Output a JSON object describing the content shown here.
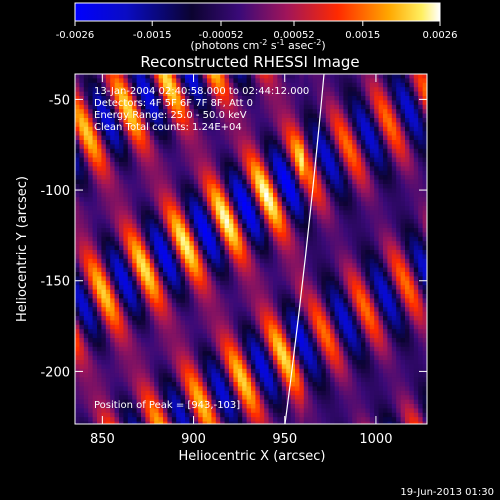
{
  "colorbar": {
    "ticks": [
      "-0.0026",
      "-0.0015",
      "-0.00052",
      "0.00052",
      "0.0015",
      "0.0026"
    ],
    "unit_main": "(photons cm",
    "unit_exp1": "-2",
    "unit_mid": " s",
    "unit_exp2": "-1",
    "unit_mid2": " asec",
    "unit_exp3": "-2",
    "unit_end": ")"
  },
  "header": {
    "title": "Reconstructed RHESSI Image",
    "line1": "13-Jan-2004 02:40:58.000 to 02:44:12.000",
    "line2": "Detectors: 4F 5F 6F 7F 8F, Att 0",
    "line3": "Energy Range: 25.0 - 50.0 keV",
    "line4": "Clean     Total counts: 1.24E+04"
  },
  "peak_label": "Position of Peak = [943,-103]",
  "footer": {
    "timestamp": "19-Jun-2013 01:30"
  },
  "chart_data": {
    "type": "heatmap",
    "title": "Reconstructed RHESSI Image",
    "xlabel": "Heliocentric X (arcsec)",
    "ylabel": "Heliocentric Y (arcsec)",
    "xlim": [
      835,
      1028
    ],
    "ylim": [
      -229,
      -36
    ],
    "xticks": [
      850,
      900,
      950,
      1000
    ],
    "yticks": [
      -50,
      -100,
      -150,
      -200
    ],
    "xtick_labels": [
      "850",
      "900",
      "950",
      "1000"
    ],
    "ytick_labels": [
      "-50",
      "-100",
      "-150",
      "-200"
    ],
    "value_range": [
      -0.0026,
      0.0026
    ],
    "colormap": "blue-black-purple-red-orange-yellow-white",
    "peak": [
      943,
      -103
    ]
  }
}
